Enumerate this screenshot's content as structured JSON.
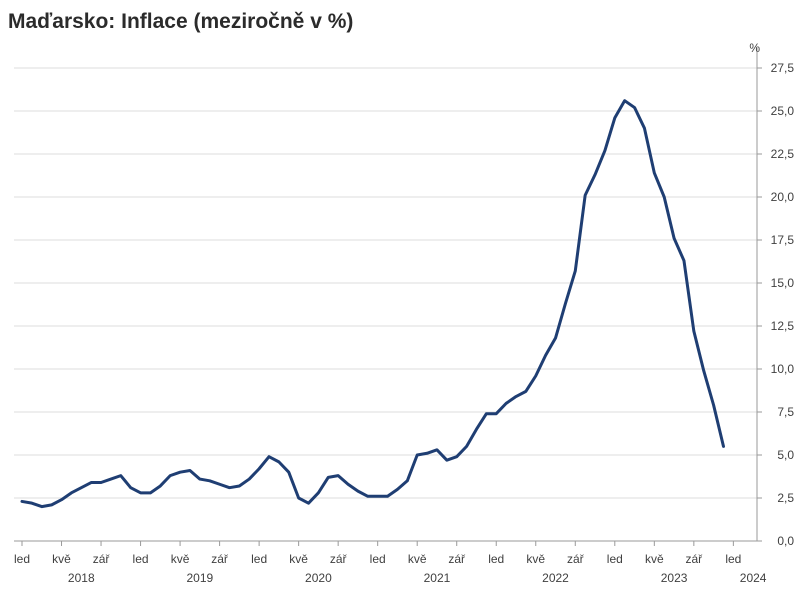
{
  "title": "Maďarsko: Inflace (meziročně v %)",
  "chart_data": {
    "type": "line",
    "title": "Maďarsko: Inflace (meziročně v %)",
    "y_unit": "%",
    "ylim": [
      0,
      27.5
    ],
    "y_ticks": [
      0,
      2.5,
      5,
      7.5,
      10,
      12.5,
      15,
      17.5,
      20,
      22.5,
      25,
      27.5
    ],
    "y_tick_labels": [
      "0,0",
      "2,5",
      "5,0",
      "7,5",
      "10,0",
      "12,5",
      "15,0",
      "17,5",
      "20,0",
      "22,5",
      "25,0",
      "27,5"
    ],
    "y_axis_side": "right",
    "grid": true,
    "legend": "none",
    "line_color": "#1f3e73",
    "x_start": "2018-01",
    "x_end": "2024-01",
    "x_ticks": [
      {
        "date": "2018-01",
        "label": "led"
      },
      {
        "date": "2018-05",
        "label": "kvě"
      },
      {
        "date": "2018-09",
        "label": "zář"
      },
      {
        "date": "2019-01",
        "label": "led"
      },
      {
        "date": "2019-05",
        "label": "kvě"
      },
      {
        "date": "2019-09",
        "label": "zář"
      },
      {
        "date": "2020-01",
        "label": "led"
      },
      {
        "date": "2020-05",
        "label": "kvě"
      },
      {
        "date": "2020-09",
        "label": "zář"
      },
      {
        "date": "2021-01",
        "label": "led"
      },
      {
        "date": "2021-05",
        "label": "kvě"
      },
      {
        "date": "2021-09",
        "label": "zář"
      },
      {
        "date": "2022-01",
        "label": "led"
      },
      {
        "date": "2022-05",
        "label": "kvě"
      },
      {
        "date": "2022-09",
        "label": "zář"
      },
      {
        "date": "2023-01",
        "label": "led"
      },
      {
        "date": "2023-05",
        "label": "kvě"
      },
      {
        "date": "2023-09",
        "label": "zář"
      },
      {
        "date": "2024-01",
        "label": "led"
      }
    ],
    "year_labels": [
      {
        "date": "2018-07",
        "label": "2018"
      },
      {
        "date": "2019-07",
        "label": "2019"
      },
      {
        "date": "2020-07",
        "label": "2020"
      },
      {
        "date": "2021-07",
        "label": "2021"
      },
      {
        "date": "2022-07",
        "label": "2022"
      },
      {
        "date": "2023-07",
        "label": "2023"
      },
      {
        "date": "2024-03",
        "label": "2024"
      }
    ],
    "series": [
      {
        "x": [
          "2018-01",
          "2018-02",
          "2018-03",
          "2018-04",
          "2018-05",
          "2018-06",
          "2018-07",
          "2018-08",
          "2018-09",
          "2018-10",
          "2018-11",
          "2018-12",
          "2019-01",
          "2019-02",
          "2019-03",
          "2019-04",
          "2019-05",
          "2019-06",
          "2019-07",
          "2019-08",
          "2019-09",
          "2019-10",
          "2019-11",
          "2019-12",
          "2020-01",
          "2020-02",
          "2020-03",
          "2020-04",
          "2020-05",
          "2020-06",
          "2020-07",
          "2020-08",
          "2020-09",
          "2020-10",
          "2020-11",
          "2020-12",
          "2021-01",
          "2021-02",
          "2021-03",
          "2021-04",
          "2021-05",
          "2021-06",
          "2021-07",
          "2021-08",
          "2021-09",
          "2021-10",
          "2021-11",
          "2021-12",
          "2022-01",
          "2022-02",
          "2022-03",
          "2022-04",
          "2022-05",
          "2022-06",
          "2022-07",
          "2022-08",
          "2022-09",
          "2022-10",
          "2022-11",
          "2022-12",
          "2023-01",
          "2023-02",
          "2023-03",
          "2023-04",
          "2023-05",
          "2023-06",
          "2023-07",
          "2023-08",
          "2023-09",
          "2023-10",
          "2023-11",
          "2023-12"
        ],
        "y": [
          2.3,
          2.2,
          2.0,
          2.1,
          2.4,
          2.8,
          3.1,
          3.4,
          3.4,
          3.6,
          3.8,
          3.1,
          2.8,
          2.8,
          3.2,
          3.8,
          4.0,
          4.1,
          3.6,
          3.5,
          3.3,
          3.1,
          3.2,
          3.6,
          4.2,
          4.9,
          4.6,
          4.0,
          2.5,
          2.2,
          2.8,
          3.7,
          3.8,
          3.3,
          2.9,
          2.6,
          2.6,
          2.6,
          3.0,
          3.5,
          5.0,
          5.1,
          5.3,
          4.7,
          4.9,
          5.5,
          6.5,
          7.4,
          7.4,
          8.0,
          8.4,
          8.7,
          9.6,
          10.8,
          11.8,
          13.8,
          15.7,
          20.1,
          21.3,
          22.7,
          24.6,
          25.6,
          25.2,
          24.0,
          21.4,
          20.0,
          17.6,
          16.3,
          12.2,
          9.9,
          7.9,
          5.5
        ]
      }
    ]
  }
}
